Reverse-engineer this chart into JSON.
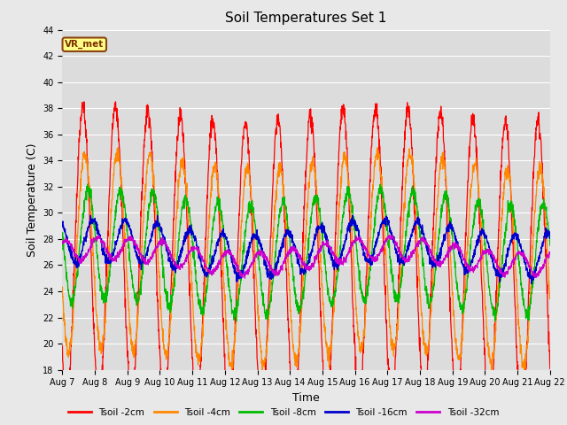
{
  "title": "Soil Temperatures Set 1",
  "xlabel": "Time",
  "ylabel": "Soil Temperature (C)",
  "ylim": [
    18,
    44
  ],
  "yticks": [
    18,
    20,
    22,
    24,
    26,
    28,
    30,
    32,
    34,
    36,
    38,
    40,
    42,
    44
  ],
  "date_labels": [
    "Aug 7",
    "Aug 8",
    "Aug 9",
    "Aug 10",
    "Aug 11",
    "Aug 12",
    "Aug 13",
    "Aug 14",
    "Aug 15",
    "Aug 16",
    "Aug 17",
    "Aug 18",
    "Aug 19",
    "Aug 20",
    "Aug 21",
    "Aug 22"
  ],
  "series_colors": [
    "#ff0000",
    "#ff8800",
    "#00bb00",
    "#0000cc",
    "#cc00cc"
  ],
  "series_labels": [
    "Tsoil -2cm",
    "Tsoil -4cm",
    "Tsoil -8cm",
    "Tsoil -16cm",
    "Tsoil -32cm"
  ],
  "legend_label": "VR_met",
  "fig_bg_color": "#e8e8e8",
  "plot_bg_color": "#dcdcdc",
  "grid_color": "#ffffff",
  "tick_fontsize": 7,
  "label_fontsize": 9,
  "title_fontsize": 11,
  "n_days": 15,
  "pts_per_day": 144,
  "base_temp": 26.5,
  "amp_2cm": 11.0,
  "amp_4cm": 7.5,
  "amp_8cm": 4.2,
  "amp_16cm": 1.6,
  "amp_32cm": 0.85,
  "phase_2cm": 0.0,
  "phase_4cm": 0.06,
  "phase_8cm": 0.16,
  "phase_16cm": 0.3,
  "phase_32cm": 0.45
}
